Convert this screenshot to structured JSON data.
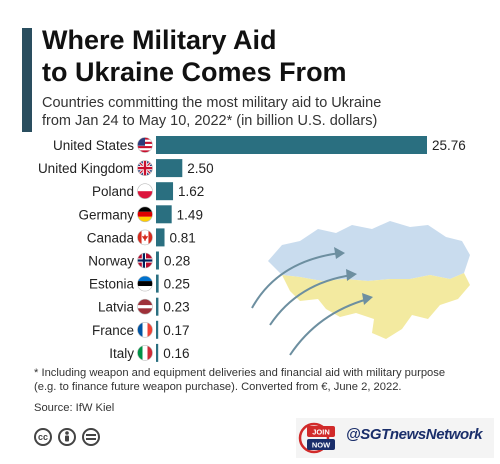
{
  "header": {
    "title_lines": [
      "Where Military Aid",
      "to Ukraine Comes From"
    ],
    "subtitle_lines": [
      "Countries committing the most military aid to Ukraine",
      "from Jan 24 to May 10, 2022* (in billion U.S. dollars)"
    ]
  },
  "chart_data": {
    "type": "bar",
    "orientation": "horizontal",
    "categories": [
      "United States",
      "United Kingdom",
      "Poland",
      "Germany",
      "Canada",
      "Norway",
      "Estonia",
      "Latvia",
      "France",
      "Italy"
    ],
    "values": [
      25.76,
      2.5,
      1.62,
      1.49,
      0.81,
      0.28,
      0.25,
      0.23,
      0.17,
      0.16
    ],
    "value_labels": [
      "25.76",
      "2.50",
      "1.62",
      "1.49",
      "0.81",
      "0.28",
      "0.25",
      "0.23",
      "0.17",
      "0.16"
    ],
    "flags": [
      "us-flag-icon",
      "uk-flag-icon",
      "poland-flag-icon",
      "germany-flag-icon",
      "canada-flag-icon",
      "norway-flag-icon",
      "estonia-flag-icon",
      "latvia-flag-icon",
      "france-flag-icon",
      "italy-flag-icon"
    ],
    "bar_color": "#2a6f80",
    "grid": false,
    "legend": "none",
    "title": "Where Military Aid to Ukraine Comes From",
    "xlabel": "",
    "ylabel": ""
  },
  "footer": {
    "footnote_lines": [
      "* Including weapon and equipment deliveries and financial aid with military purpose",
      "(e.g. to finance future weapon purchase). Converted from €, June 2, 2022."
    ],
    "source": "Source: IfW Kiel",
    "license_icons": [
      "cc-icon",
      "by-icon",
      "nd-icon"
    ]
  },
  "watermark": {
    "badge_top": "JOIN",
    "badge_bottom": "NOW",
    "handle": "@SGTnewsNetwork"
  },
  "colors": {
    "accent_bar": "#2a4e5f",
    "map_blue": "#c9dcee",
    "map_yellow": "#f3eaa0",
    "arrow": "#6d8fa0"
  }
}
